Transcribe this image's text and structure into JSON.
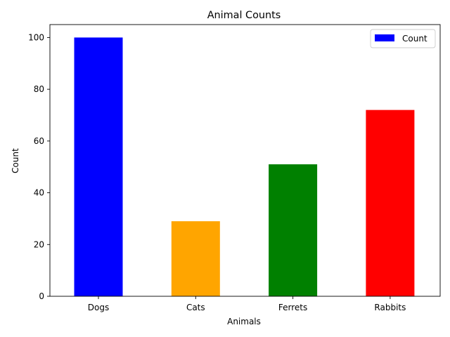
{
  "chart_data": {
    "type": "bar",
    "title": "Animal Counts",
    "xlabel": "Animals",
    "ylabel": "Count",
    "categories": [
      "Dogs",
      "Cats",
      "Ferrets",
      "Rabbits"
    ],
    "series": [
      {
        "name": "Count",
        "values": [
          100,
          29,
          51,
          72
        ]
      }
    ],
    "bar_colors": [
      "#0000ff",
      "#ffa500",
      "#008000",
      "#ff0000"
    ],
    "legend_color": "#0000ff",
    "ylim": [
      0,
      105
    ],
    "yticks": [
      0,
      20,
      40,
      60,
      80,
      100
    ],
    "grid": false,
    "legend_position": "top-right"
  }
}
